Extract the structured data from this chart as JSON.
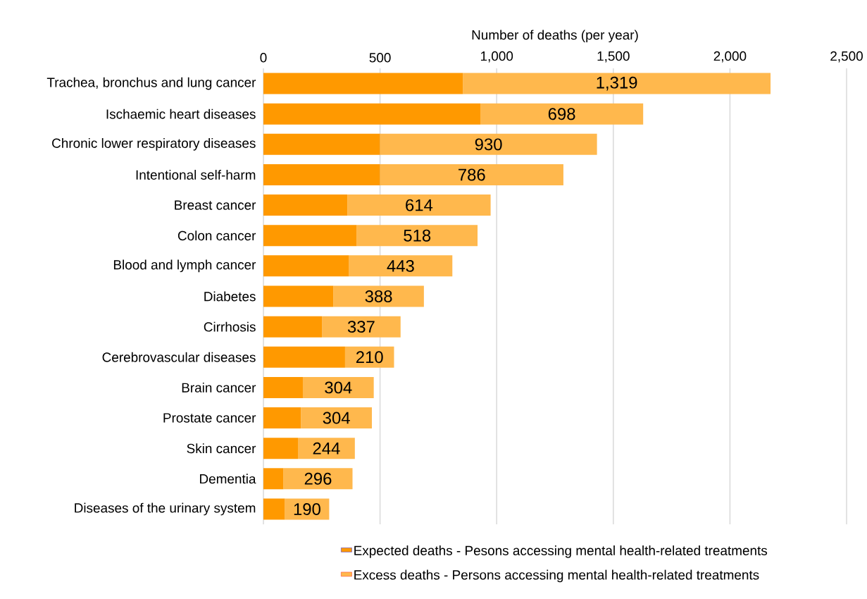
{
  "chart_data": {
    "type": "bar",
    "orientation": "horizontal",
    "stacked": true,
    "xlabel": "Number of deaths (per year)",
    "categories": [
      "Trachea, bronchus and lung cancer",
      "Ischaemic heart diseases",
      "Chronic lower respiratory diseases",
      "Intentional self-harm",
      "Breast cancer",
      "Colon cancer",
      "Blood and lymph cancer",
      "Diabetes",
      "Cirrhosis",
      "Cerebrovascular diseases",
      "Brain cancer",
      "Prostate cancer",
      "Skin cancer",
      "Dementia",
      "Diseases of the urinary system"
    ],
    "series": [
      {
        "name": "Expected deaths - Pesons accessing mental health-related treatments",
        "color": "#ff9900",
        "values": [
          855,
          930,
          500,
          500,
          360,
          400,
          367,
          300,
          251,
          350,
          169,
          161,
          148,
          86,
          92
        ]
      },
      {
        "name": "Excess deaths - Persons accessing mental health-related treatments",
        "color": "#ffb84d",
        "values": [
          1319,
          698,
          930,
          786,
          614,
          518,
          443,
          388,
          337,
          210,
          304,
          304,
          244,
          296,
          190
        ],
        "value_labels": [
          "1,319",
          "698",
          "930",
          "786",
          "614",
          "518",
          "443",
          "388",
          "337",
          "210",
          "304",
          "304",
          "244",
          "296",
          "190"
        ]
      }
    ],
    "xlim": [
      0,
      2500
    ],
    "xticks": [
      0,
      {
        "value": 500,
        "label": "500"
      },
      {
        "value": 1000,
        "label": "1,000"
      },
      {
        "value": 1500,
        "label": "1,500"
      },
      {
        "value": 2000,
        "label": "2,000"
      },
      {
        "value": 2500,
        "label": "2,500"
      }
    ],
    "grid": "x",
    "legend": "bottom"
  }
}
